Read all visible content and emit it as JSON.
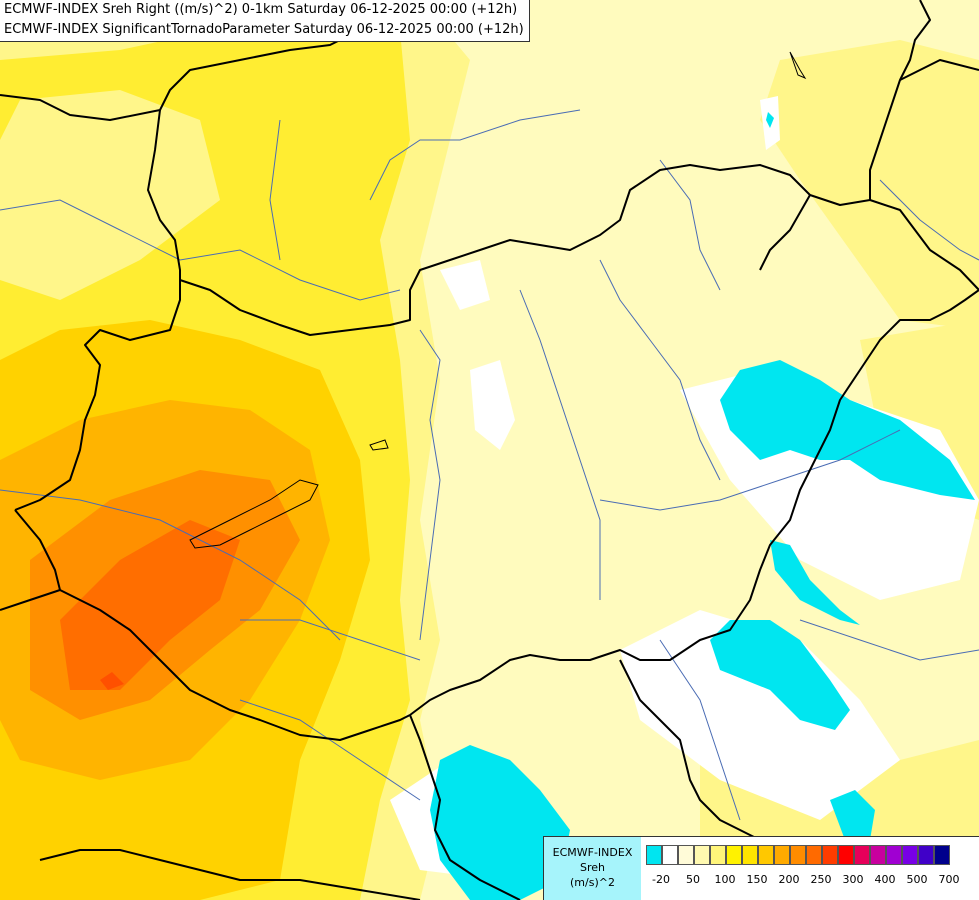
{
  "header": {
    "line1": "ECMWF-INDEX Sreh Right ((m/s)^2) 0-1km Saturday 06-12-2025 00:00 (+12h)",
    "line2": "ECMWF-INDEX SignificantTornadoParameter Saturday 06-12-2025 00:00 (+12h)"
  },
  "legend": {
    "title_line1": "ECMWF-INDEX",
    "title_line2": "Sreh",
    "title_line3": "(m/s)^2",
    "colors": [
      "#00e5f0",
      "#ffffff",
      "#fffbd8",
      "#fff9b0",
      "#fff57a",
      "#fff200",
      "#ffe400",
      "#ffc800",
      "#ffaa00",
      "#ff8c00",
      "#ff6a00",
      "#ff3c00",
      "#ff0000",
      "#e6005a",
      "#c8009e",
      "#a000d2",
      "#7800e6",
      "#4000c8",
      "#00008c"
    ],
    "ticks": [
      "-20",
      "50",
      "100",
      "150",
      "200",
      "250",
      "300",
      "400",
      "500",
      "700"
    ]
  },
  "colors": {
    "pale_yellow": "#fffbbe",
    "light_yellow": "#fff68a",
    "yellow": "#ffed32",
    "gold": "#ffd200",
    "orange": "#ffb400",
    "dark_orange": "#ff9000",
    "red_orange": "#ff6e00",
    "cyan": "#00e6f0",
    "white": "#ffffff"
  }
}
